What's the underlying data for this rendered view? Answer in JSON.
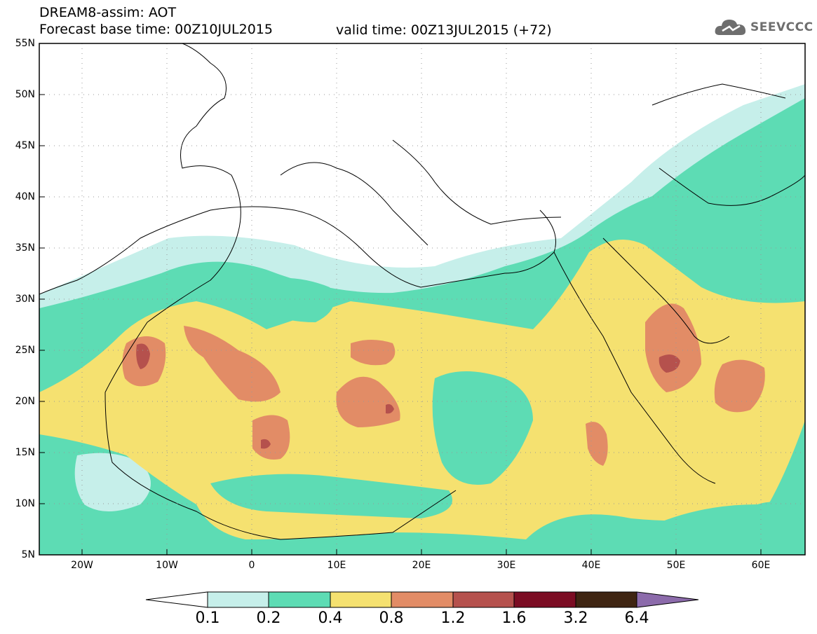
{
  "header": {
    "title_line1": "DREAM8-assim: AOT",
    "title_line2": "Forecast base time: 00Z10JUL2015",
    "valid_time": "valid time: 00Z13JUL2015 (+72)",
    "logo_text": "SEEVCCC"
  },
  "map": {
    "variable": "AOT",
    "lon_range": [
      -25,
      65
    ],
    "lat_range": [
      5,
      55
    ],
    "grid": true,
    "lat_labels": [
      "55N",
      "50N",
      "45N",
      "40N",
      "35N",
      "30N",
      "25N",
      "20N",
      "15N",
      "10N",
      "5N"
    ],
    "lon_labels": [
      "20W",
      "10W",
      "0",
      "10E",
      "20E",
      "30E",
      "40E",
      "50E",
      "60E"
    ]
  },
  "colorbar": {
    "labels": [
      "0.1",
      "0.2",
      "0.4",
      "0.8",
      "1.2",
      "1.6",
      "3.2",
      "6.4"
    ],
    "colors": [
      "#ffffff",
      "#c6efea",
      "#5ddcb4",
      "#f5e170",
      "#e28c66",
      "#b5514d",
      "#7b0c23",
      "#3f2512",
      "#8c6bab"
    ]
  }
}
